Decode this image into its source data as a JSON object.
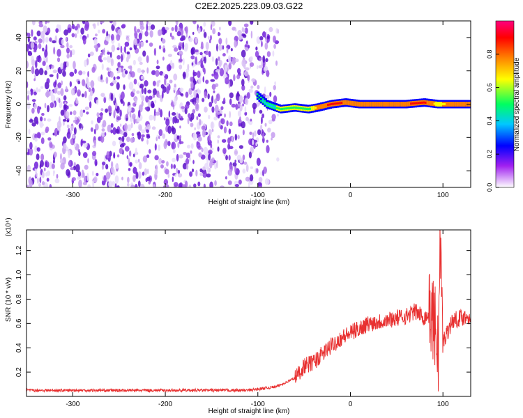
{
  "title": "C2E2.2025.223.09.03.G22",
  "chart_data": [
    {
      "type": "heatmap",
      "xlabel": "Height of straight line (km)",
      "ylabel": "Frequency (Hz)",
      "xlim": [
        -350,
        130
      ],
      "ylim": [
        -50,
        50
      ],
      "x_ticks": [
        -300,
        -200,
        -100,
        0,
        100
      ],
      "y_ticks": [
        -40,
        -20,
        0,
        20,
        40
      ],
      "colorbar": {
        "label": "Normalized spectral amplitude",
        "range": [
          0,
          1
        ],
        "ticks": [
          "0.0",
          "0.2",
          "0.4",
          "0.6",
          "0.8"
        ],
        "colors": [
          "#ffffff",
          "#a020f0",
          "#0000ff",
          "#00c8ff",
          "#00ff60",
          "#ffff00",
          "#ff8000",
          "#ff0000",
          "#ff007f"
        ]
      },
      "noise_region": {
        "x": [
          -350,
          -88
        ],
        "frequency": [
          -50,
          50
        ],
        "amplitude": 0.1
      },
      "carrier_track": [
        {
          "x": -100,
          "frequency": 5,
          "amplitude": 0.25
        },
        {
          "x": -90,
          "frequency": 0,
          "amplitude": 0.4
        },
        {
          "x": -75,
          "frequency": -3,
          "amplitude": 0.45
        },
        {
          "x": -60,
          "frequency": -2,
          "amplitude": 0.5
        },
        {
          "x": -45,
          "frequency": -3,
          "amplitude": 0.5
        },
        {
          "x": -35,
          "frequency": -2,
          "amplitude": 0.7
        },
        {
          "x": -20,
          "frequency": 0,
          "amplitude": 0.85
        },
        {
          "x": -5,
          "frequency": 1,
          "amplitude": 0.8
        },
        {
          "x": 10,
          "frequency": 0,
          "amplitude": 0.75
        },
        {
          "x": 30,
          "frequency": 0,
          "amplitude": 0.8
        },
        {
          "x": 60,
          "frequency": 0,
          "amplitude": 0.8
        },
        {
          "x": 80,
          "frequency": 1,
          "amplitude": 0.85
        },
        {
          "x": 95,
          "frequency": 0,
          "amplitude": 0.6
        },
        {
          "x": 110,
          "frequency": 0,
          "amplitude": 0.75
        },
        {
          "x": 130,
          "frequency": 0,
          "amplitude": 0.75
        }
      ]
    },
    {
      "type": "line",
      "xlabel": "Height of straight line (km)",
      "ylabel": "SNR (10 * v/v)",
      "y_multiplier": "(x10⁴)",
      "xlim": [
        -350,
        130
      ],
      "ylim": [
        0,
        1.37
      ],
      "x_ticks": [
        -300,
        -200,
        -100,
        0,
        100
      ],
      "y_ticks": [
        "0.2",
        "0.4",
        "0.6",
        "0.8",
        "1.0",
        "1.2"
      ],
      "series": [
        {
          "color": "#e83030",
          "x": [
            -350,
            -300,
            -250,
            -200,
            -150,
            -110,
            -80,
            -60,
            -50,
            -40,
            -30,
            -20,
            -10,
            0,
            10,
            20,
            40,
            60,
            70,
            80,
            88,
            92,
            95,
            97,
            100,
            110,
            120,
            130
          ],
          "y": [
            0.05,
            0.05,
            0.05,
            0.05,
            0.05,
            0.05,
            0.08,
            0.15,
            0.25,
            0.28,
            0.35,
            0.42,
            0.48,
            0.52,
            0.56,
            0.6,
            0.63,
            0.66,
            0.7,
            0.65,
            0.68,
            0.55,
            0.35,
            1.3,
            0.45,
            0.62,
            0.65,
            0.66
          ]
        }
      ]
    }
  ]
}
